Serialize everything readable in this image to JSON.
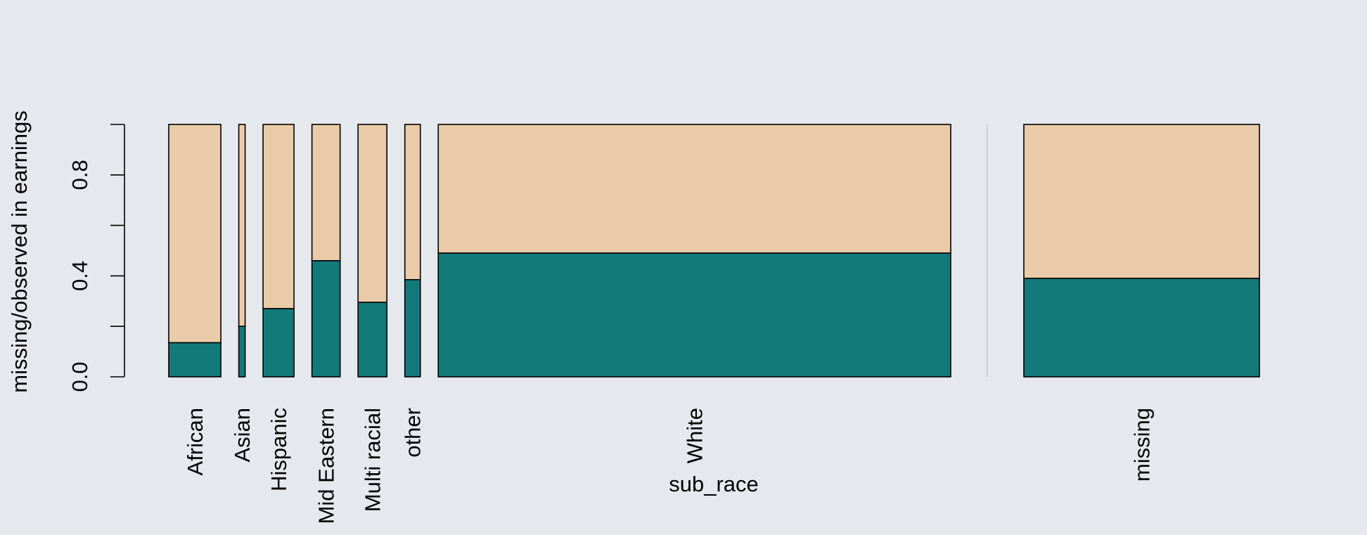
{
  "chart_data": {
    "type": "bar",
    "subtype": "spineplot",
    "xlabel": "sub_race",
    "ylabel": "missing/observed in earnings",
    "ylim": [
      0,
      1
    ],
    "yticks": [
      0.0,
      0.2,
      0.4,
      0.6,
      0.8,
      1.0
    ],
    "ytick_labels": [
      "0.0",
      "0.4",
      "0.8"
    ],
    "categories": [
      "African",
      "Asian",
      "Hispanic",
      "Mid Eastern",
      "Multi racial",
      "other",
      "White",
      "missing"
    ],
    "relative_widths": [
      74,
      9,
      44,
      40,
      41,
      22,
      728,
      335
    ],
    "series": [
      {
        "values": [
          0.135,
          0.2,
          0.27,
          0.46,
          0.295,
          0.385,
          0.49,
          0.39
        ]
      },
      {
        "values": [
          0.865,
          0.8,
          0.73,
          0.54,
          0.705,
          0.615,
          0.51,
          0.61
        ]
      }
    ],
    "colors": {
      "lower": "#127a79",
      "upper": "#e9cba9",
      "background": "#e5e8ed",
      "separator": "#c8cbd0"
    },
    "grid": false,
    "legend": "none"
  }
}
